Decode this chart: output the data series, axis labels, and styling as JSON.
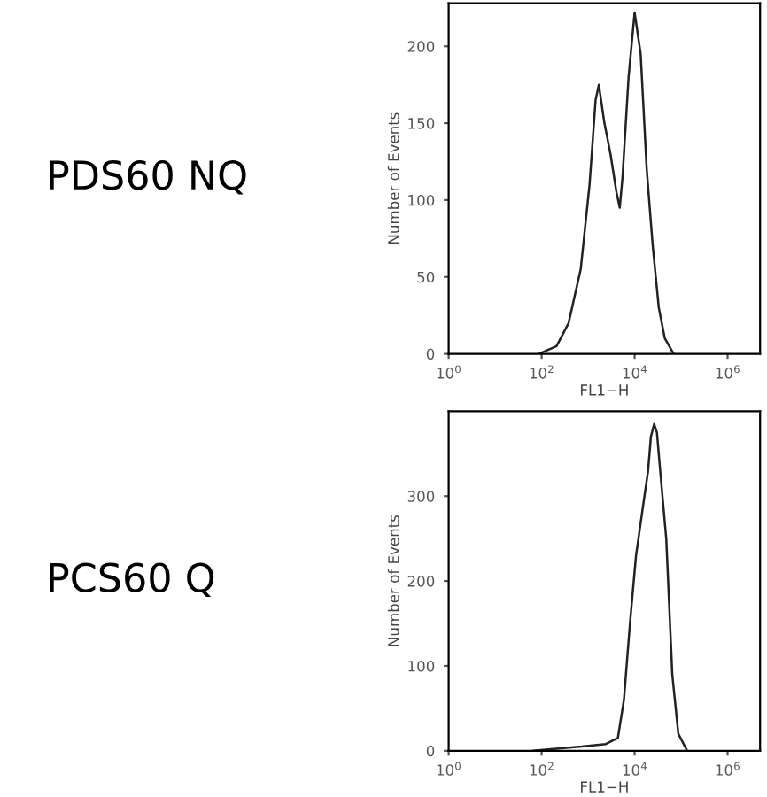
{
  "chart_data": [
    {
      "type": "line",
      "title": "PDS60 NQ",
      "xlabel": "FL1−H",
      "ylabel": "Number of Events",
      "log": "x",
      "xlim": [
        1,
        5000000
      ],
      "xticks": [
        {
          "value": 1,
          "label": "10$^{0}$"
        },
        {
          "value": 100,
          "label": "10$^{2}$"
        },
        {
          "value": 10000,
          "label": "10$^{4}$"
        },
        {
          "value": 1000000,
          "label": "10$^{6}$"
        }
      ],
      "ylim": [
        0,
        228
      ],
      "yticks": [
        0,
        50,
        100,
        150,
        200
      ],
      "grid": false,
      "legend": false,
      "series": [
        {
          "color": "#222222",
          "x": [
            87,
            209,
            380,
            692,
            1072,
            1445,
            1698,
            2239,
            3020,
            4074,
            4786,
            5495,
            7413,
            10000,
            13490,
            18200,
            24550,
            33110,
            44670,
            69180
          ],
          "values": [
            0,
            5,
            20,
            55,
            110,
            165,
            175,
            150,
            130,
            105,
            95,
            115,
            180,
            222,
            195,
            120,
            70,
            30,
            10,
            0
          ]
        }
      ]
    },
    {
      "type": "line",
      "title": "PCS60 Q",
      "xlabel": "FL1−H",
      "ylabel": "Number of Events",
      "log": "x",
      "xlim": [
        1,
        5000000
      ],
      "xticks": [
        {
          "value": 1,
          "label": "10$^{0}$"
        },
        {
          "value": 100,
          "label": "10$^{2}$"
        },
        {
          "value": 10000,
          "label": "10$^{4}$"
        },
        {
          "value": 1000000,
          "label": "10$^{6}$"
        }
      ],
      "ylim": [
        0,
        400
      ],
      "yticks": [
        0,
        100,
        200,
        300
      ],
      "grid": false,
      "legend": false,
      "series": [
        {
          "color": "#222222",
          "x": [
            66,
            158,
            724,
            2399,
            4365,
            5888,
            7943,
            10720,
            14450,
            19500,
            22390,
            26300,
            30200,
            35480,
            47860,
            64570,
            87100,
            134900
          ],
          "values": [
            0,
            2,
            5,
            8,
            15,
            60,
            150,
            230,
            280,
            330,
            370,
            385,
            375,
            330,
            250,
            90,
            20,
            0
          ]
        }
      ]
    }
  ]
}
